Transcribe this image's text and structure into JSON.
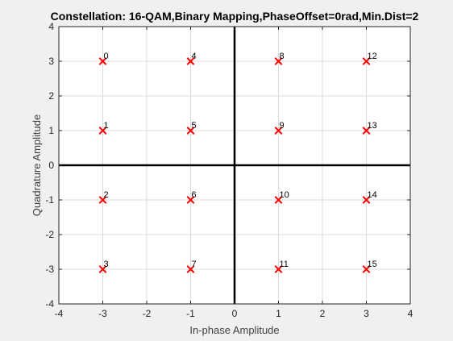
{
  "chart_data": {
    "type": "scatter",
    "title": "Constellation: 16-QAM,Binary Mapping,PhaseOffset=0rad,Min.Dist=2",
    "xlabel": "In-phase Amplitude",
    "ylabel": "Quadrature Amplitude",
    "xlim": [
      -4,
      4
    ],
    "ylim": [
      -4,
      4
    ],
    "xticks": [
      "-4",
      "-3",
      "-2",
      "-1",
      "0",
      "1",
      "2",
      "3",
      "4"
    ],
    "yticks": [
      "-4",
      "-3",
      "-2",
      "-1",
      "0",
      "1",
      "2",
      "3",
      "4"
    ],
    "grid": true,
    "marker": "x",
    "marker_color": "#ff0000",
    "points": [
      {
        "x": -3,
        "y": 3,
        "label": "0"
      },
      {
        "x": -3,
        "y": 1,
        "label": "1"
      },
      {
        "x": -3,
        "y": -1,
        "label": "2"
      },
      {
        "x": -3,
        "y": -3,
        "label": "3"
      },
      {
        "x": -1,
        "y": 3,
        "label": "4"
      },
      {
        "x": -1,
        "y": 1,
        "label": "5"
      },
      {
        "x": -1,
        "y": -1,
        "label": "6"
      },
      {
        "x": -1,
        "y": -3,
        "label": "7"
      },
      {
        "x": 1,
        "y": 3,
        "label": "8"
      },
      {
        "x": 1,
        "y": 1,
        "label": "9"
      },
      {
        "x": 1,
        "y": -1,
        "label": "10"
      },
      {
        "x": 1,
        "y": -3,
        "label": "11"
      },
      {
        "x": 3,
        "y": 3,
        "label": "12"
      },
      {
        "x": 3,
        "y": 1,
        "label": "13"
      },
      {
        "x": 3,
        "y": -1,
        "label": "14"
      },
      {
        "x": 3,
        "y": -3,
        "label": "15"
      }
    ]
  }
}
